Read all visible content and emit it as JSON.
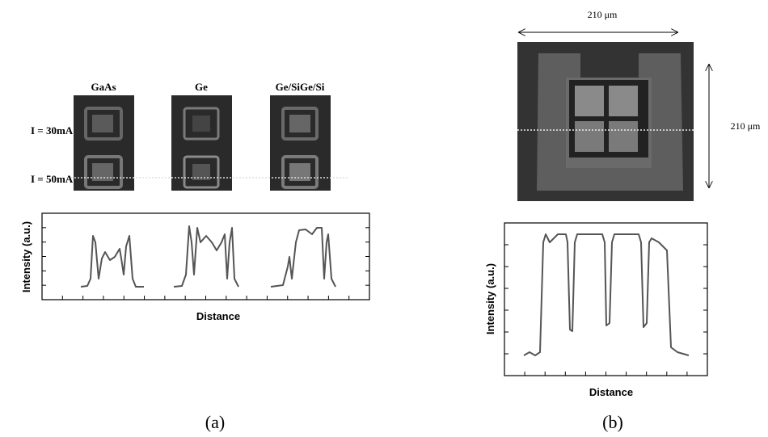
{
  "panel_a": {
    "column_labels": [
      "GaAs",
      "Ge",
      "Ge/SiGe/Si"
    ],
    "row_labels": [
      "I = 30mA",
      "I = 50mA"
    ],
    "plot": {
      "y_label": "Intensity (a.u.)",
      "x_label": "Distance"
    },
    "caption": "(a)"
  },
  "panel_b": {
    "width_label": "210 μm",
    "height_label": "210 μm",
    "plot": {
      "y_label": "Intensity (a.u.)",
      "x_label": "Distance"
    },
    "caption": "(b)"
  }
}
